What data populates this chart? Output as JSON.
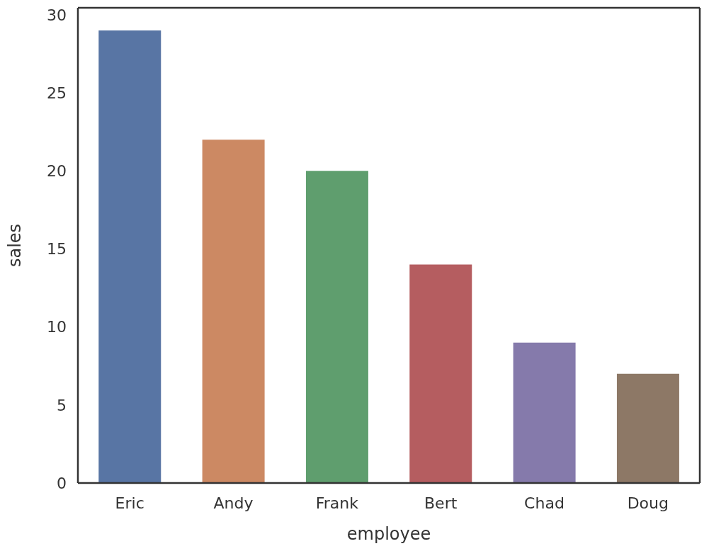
{
  "chart_data": {
    "type": "bar",
    "xlabel": "employee",
    "ylabel": "sales",
    "categories": [
      "Eric",
      "Andy",
      "Frank",
      "Bert",
      "Chad",
      "Doug"
    ],
    "values": [
      29,
      22,
      20,
      14,
      9,
      7
    ],
    "colors": [
      "#5875a4",
      "#cc8963",
      "#5f9e6e",
      "#b55d60",
      "#857aab",
      "#8d7866"
    ],
    "ylim": [
      0,
      30.45
    ],
    "yticks": [
      0,
      5,
      10,
      15,
      20,
      25,
      30
    ]
  }
}
